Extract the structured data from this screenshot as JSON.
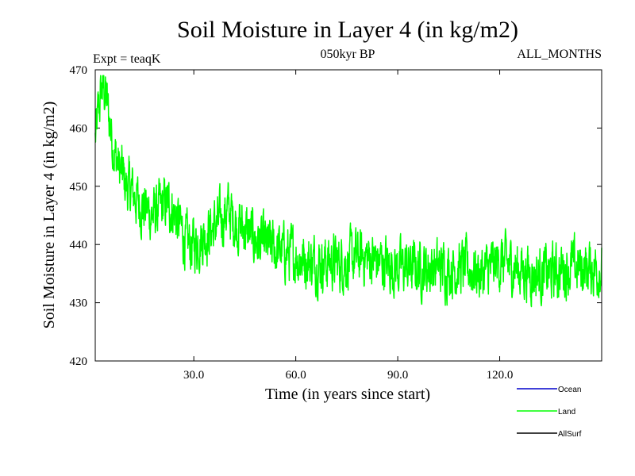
{
  "chart_data": {
    "type": "line",
    "title": "Soil Moisture in Layer 4 (in kg/m2)",
    "subtitle_left": "Expt = teaqK",
    "subtitle_center": "050kyr BP",
    "subtitle_right": "ALL_MONTHS",
    "xlabel": "Time (in years since start)",
    "ylabel": "Soil Moisture in Layer 4 (in kg/m2)",
    "xlim": [
      1,
      150
    ],
    "ylim": [
      420,
      470
    ],
    "x_ticks": [
      30,
      60,
      90,
      120
    ],
    "x_tick_labels": [
      "30.0",
      "60.0",
      "90.0",
      "120.0"
    ],
    "y_ticks": [
      420,
      430,
      440,
      450,
      460,
      470
    ],
    "y_tick_labels": [
      "420",
      "430",
      "440",
      "450",
      "460",
      "470"
    ],
    "series": [
      {
        "name": "Land",
        "color": "#00ff00",
        "x": [
          1,
          2,
          3,
          4,
          5,
          6,
          7,
          8,
          9,
          10,
          12,
          14,
          16,
          18,
          20,
          22,
          24,
          26,
          28,
          30,
          32,
          34,
          36,
          38,
          40,
          42,
          44,
          46,
          48,
          50,
          55,
          60,
          65,
          70,
          75,
          80,
          85,
          90,
          95,
          100,
          105,
          110,
          115,
          120,
          125,
          130,
          135,
          140,
          145,
          150
        ],
        "values": [
          458,
          463,
          467,
          466,
          462,
          458,
          455,
          453,
          452,
          450,
          449,
          447,
          446,
          445,
          446,
          447,
          446,
          443,
          440,
          440,
          441,
          442,
          443,
          444,
          446,
          444,
          443,
          442,
          441,
          440,
          439,
          438,
          437,
          437,
          437,
          438,
          437,
          436,
          436,
          436,
          436,
          436,
          435,
          437,
          436,
          435,
          435,
          436,
          436,
          436
        ]
      }
    ],
    "legend": [
      {
        "name": "Ocean",
        "color": "#0000cc"
      },
      {
        "name": "Land",
        "color": "#00ff00"
      },
      {
        "name": "AllSurf",
        "color": "#000000"
      }
    ]
  }
}
